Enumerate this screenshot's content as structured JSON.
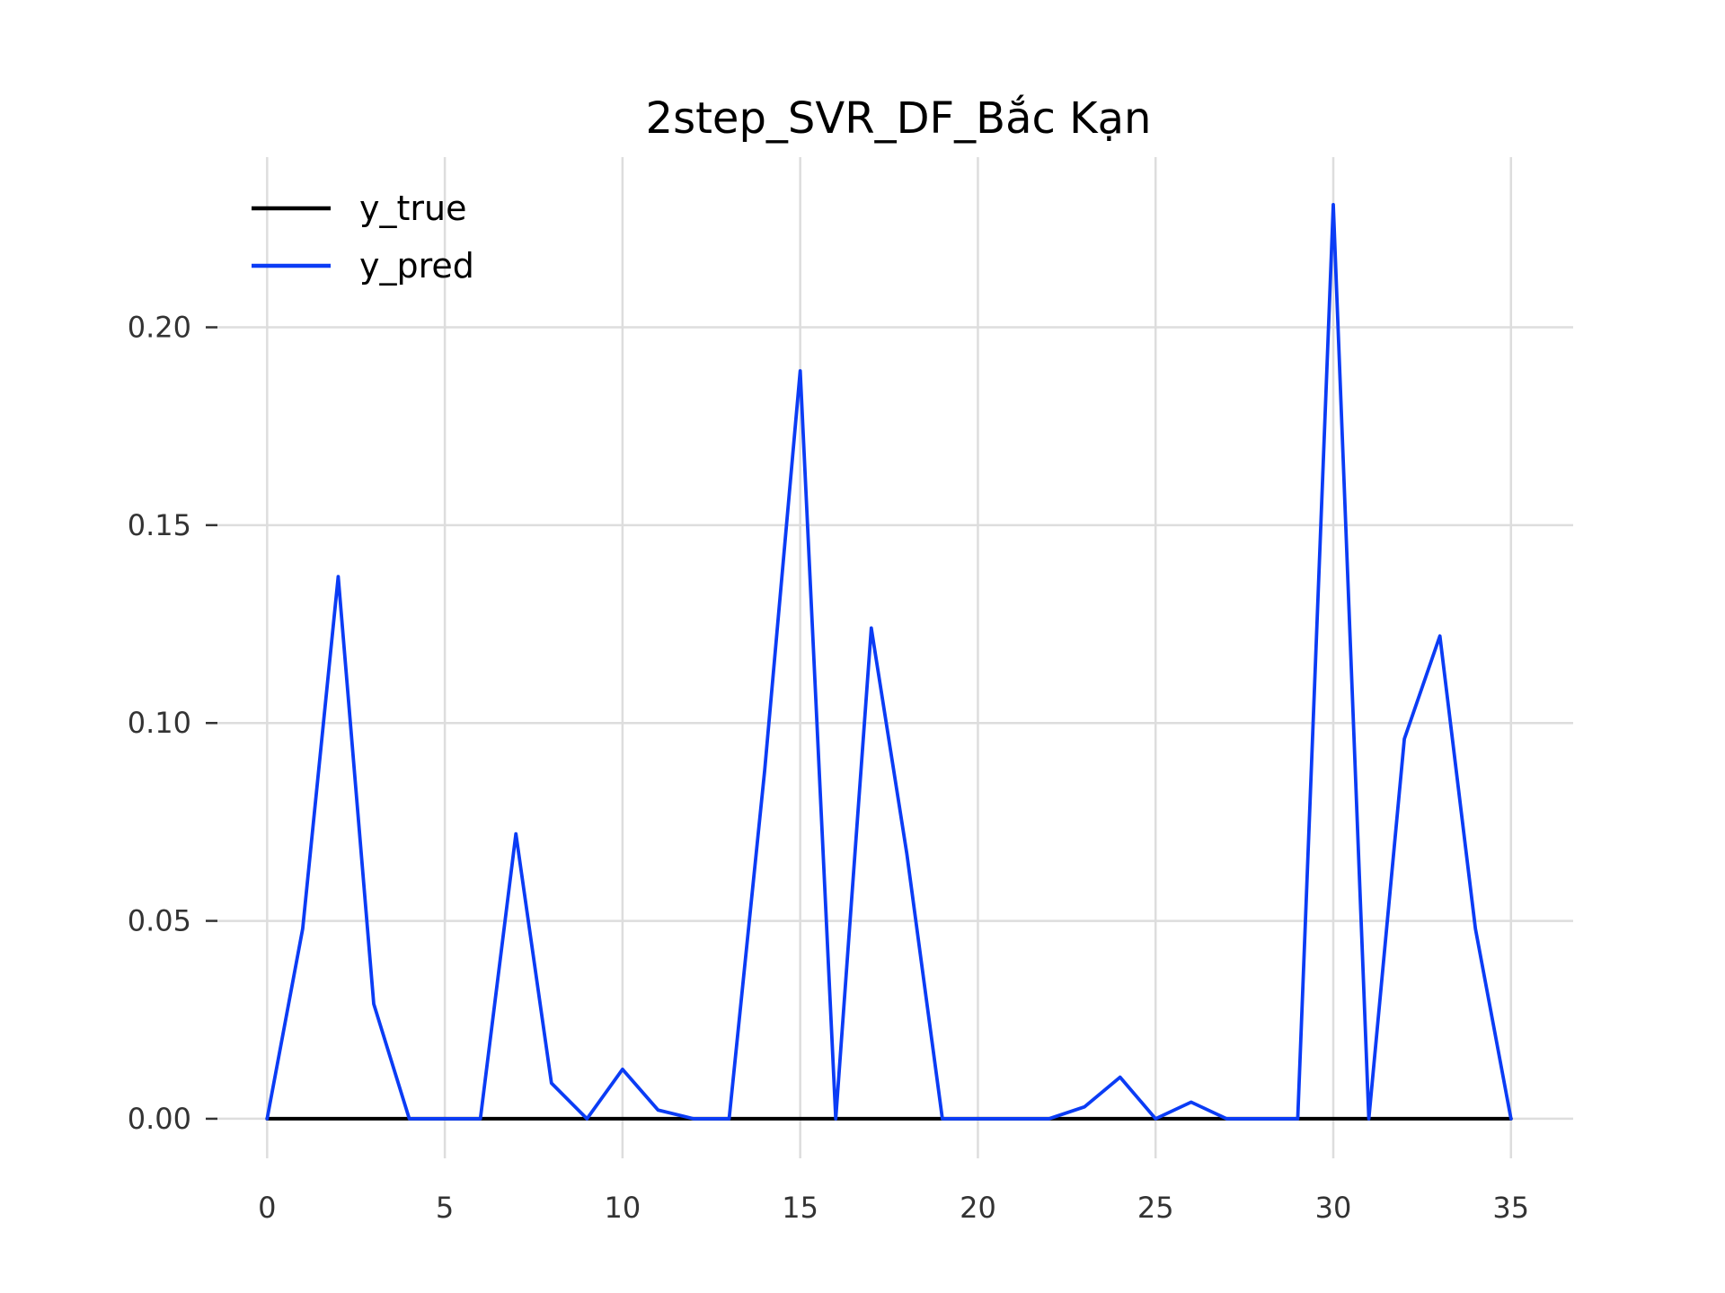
{
  "chart_data": {
    "type": "line",
    "title": "2step_SVR_DF_Bắc Kạn",
    "xlabel": "",
    "ylabel": "",
    "xlim": [
      -1.5,
      36.75
    ],
    "ylim": [
      -0.01,
      0.243
    ],
    "x_ticks": [
      0,
      5,
      10,
      15,
      20,
      25,
      30,
      35
    ],
    "x_tick_labels": [
      "0",
      "5",
      "10",
      "15",
      "20",
      "25",
      "30",
      "35"
    ],
    "y_ticks": [
      0.0,
      0.05,
      0.1,
      0.15,
      0.2
    ],
    "y_tick_labels": [
      "0.00",
      "0.05",
      "0.10",
      "0.15",
      "0.20"
    ],
    "grid": true,
    "legend_position": "top-left",
    "x": [
      0,
      1,
      2,
      3,
      4,
      5,
      6,
      7,
      8,
      9,
      10,
      11,
      12,
      13,
      14,
      15,
      16,
      17,
      18,
      19,
      20,
      21,
      22,
      23,
      24,
      25,
      26,
      27,
      28,
      29,
      30,
      31,
      32,
      33,
      34,
      35
    ],
    "series": [
      {
        "name": "y_true",
        "color": "#000000",
        "values": [
          0,
          0,
          0,
          0,
          0,
          0,
          0,
          0,
          0,
          0,
          0,
          0,
          0,
          0,
          0,
          0,
          0,
          0,
          0,
          0,
          0,
          0,
          0,
          0,
          0,
          0,
          0,
          0,
          0,
          0,
          0,
          0,
          0,
          0,
          0,
          0
        ]
      },
      {
        "name": "y_pred",
        "color": "#0b3cf5",
        "values": [
          0.0,
          0.048,
          0.137,
          0.029,
          0.0,
          0.0,
          0.0,
          0.072,
          0.009,
          0.0,
          0.0125,
          0.0022,
          0.0,
          0.0,
          0.088,
          0.189,
          0.0,
          0.124,
          0.067,
          0.0,
          0.0,
          0.0,
          0.0,
          0.003,
          0.0105,
          0.0,
          0.0042,
          0.0,
          0.0,
          0.0,
          0.231,
          0.0,
          0.096,
          0.122,
          0.048,
          0.0
        ]
      }
    ]
  }
}
